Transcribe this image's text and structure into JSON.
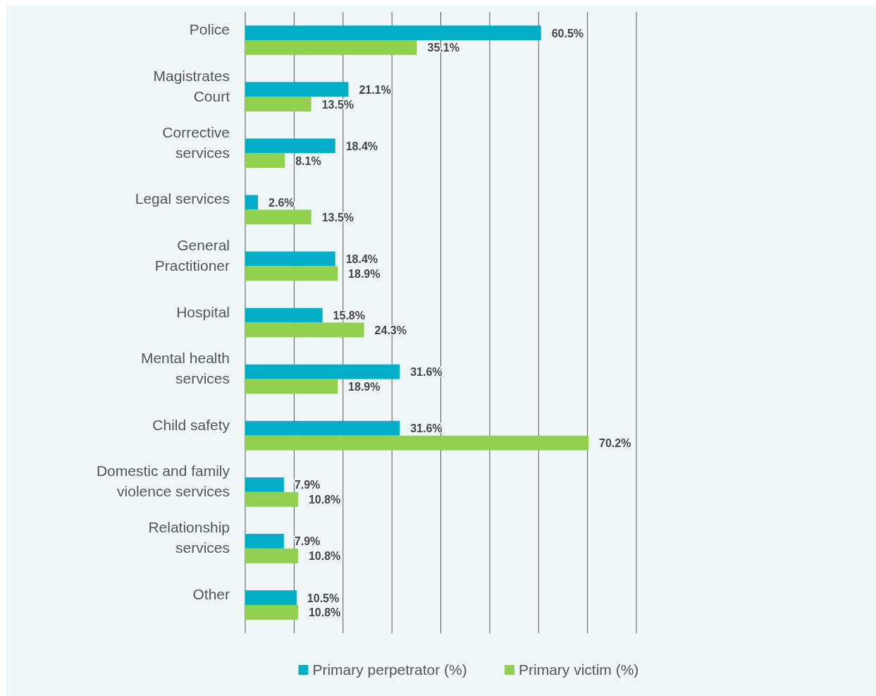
{
  "chart_data": {
    "type": "bar",
    "orientation": "horizontal",
    "categories": [
      "Police",
      "Magistrates\nCourt",
      "Corrective\nservices",
      "Legal services",
      "General\nPractitioner",
      "Hospital",
      "Mental health\nservices",
      "Child safety",
      "Domestic and family\nviolence services",
      "Relationship\nservices",
      "Other"
    ],
    "series": [
      {
        "name": "Primary perpetrator (%)",
        "color": "#00aec7",
        "values": [
          60.5,
          21.1,
          18.4,
          2.6,
          18.4,
          15.8,
          31.6,
          31.6,
          7.9,
          7.9,
          10.5
        ],
        "value_labels": [
          "60.5%",
          "21.1%",
          "18.4%",
          "2.6%",
          "18.4%",
          "15.8%",
          "31.6%",
          "31.6%",
          "7.9%",
          "7.9%",
          "10.5%"
        ]
      },
      {
        "name": "Primary victim (%)",
        "color": "#92d050",
        "values": [
          35.1,
          13.5,
          8.1,
          13.5,
          18.9,
          24.3,
          18.9,
          70.2,
          10.8,
          10.8,
          10.8
        ],
        "value_labels": [
          "35.1%",
          "13.5%",
          "8.1%",
          "13.5%",
          "18.9%",
          "24.3%",
          "18.9%",
          "70.2%",
          "10.8%",
          "10.8%",
          "10.8%"
        ]
      }
    ],
    "xlim": [
      0,
      80
    ],
    "xticks": [
      {
        "value": 0,
        "label": null
      },
      {
        "value": 10,
        "label": null
      },
      {
        "value": 20,
        "label": null
      },
      {
        "value": 30,
        "label": null
      },
      {
        "value": 40,
        "label": null
      },
      {
        "value": 50,
        "label": null
      },
      {
        "value": 60,
        "label": null
      },
      {
        "value": 70,
        "label": null
      },
      {
        "value": 80,
        "label": null
      }
    ],
    "tick_labels": "y",
    "grid": "x",
    "legend": "bottom"
  }
}
